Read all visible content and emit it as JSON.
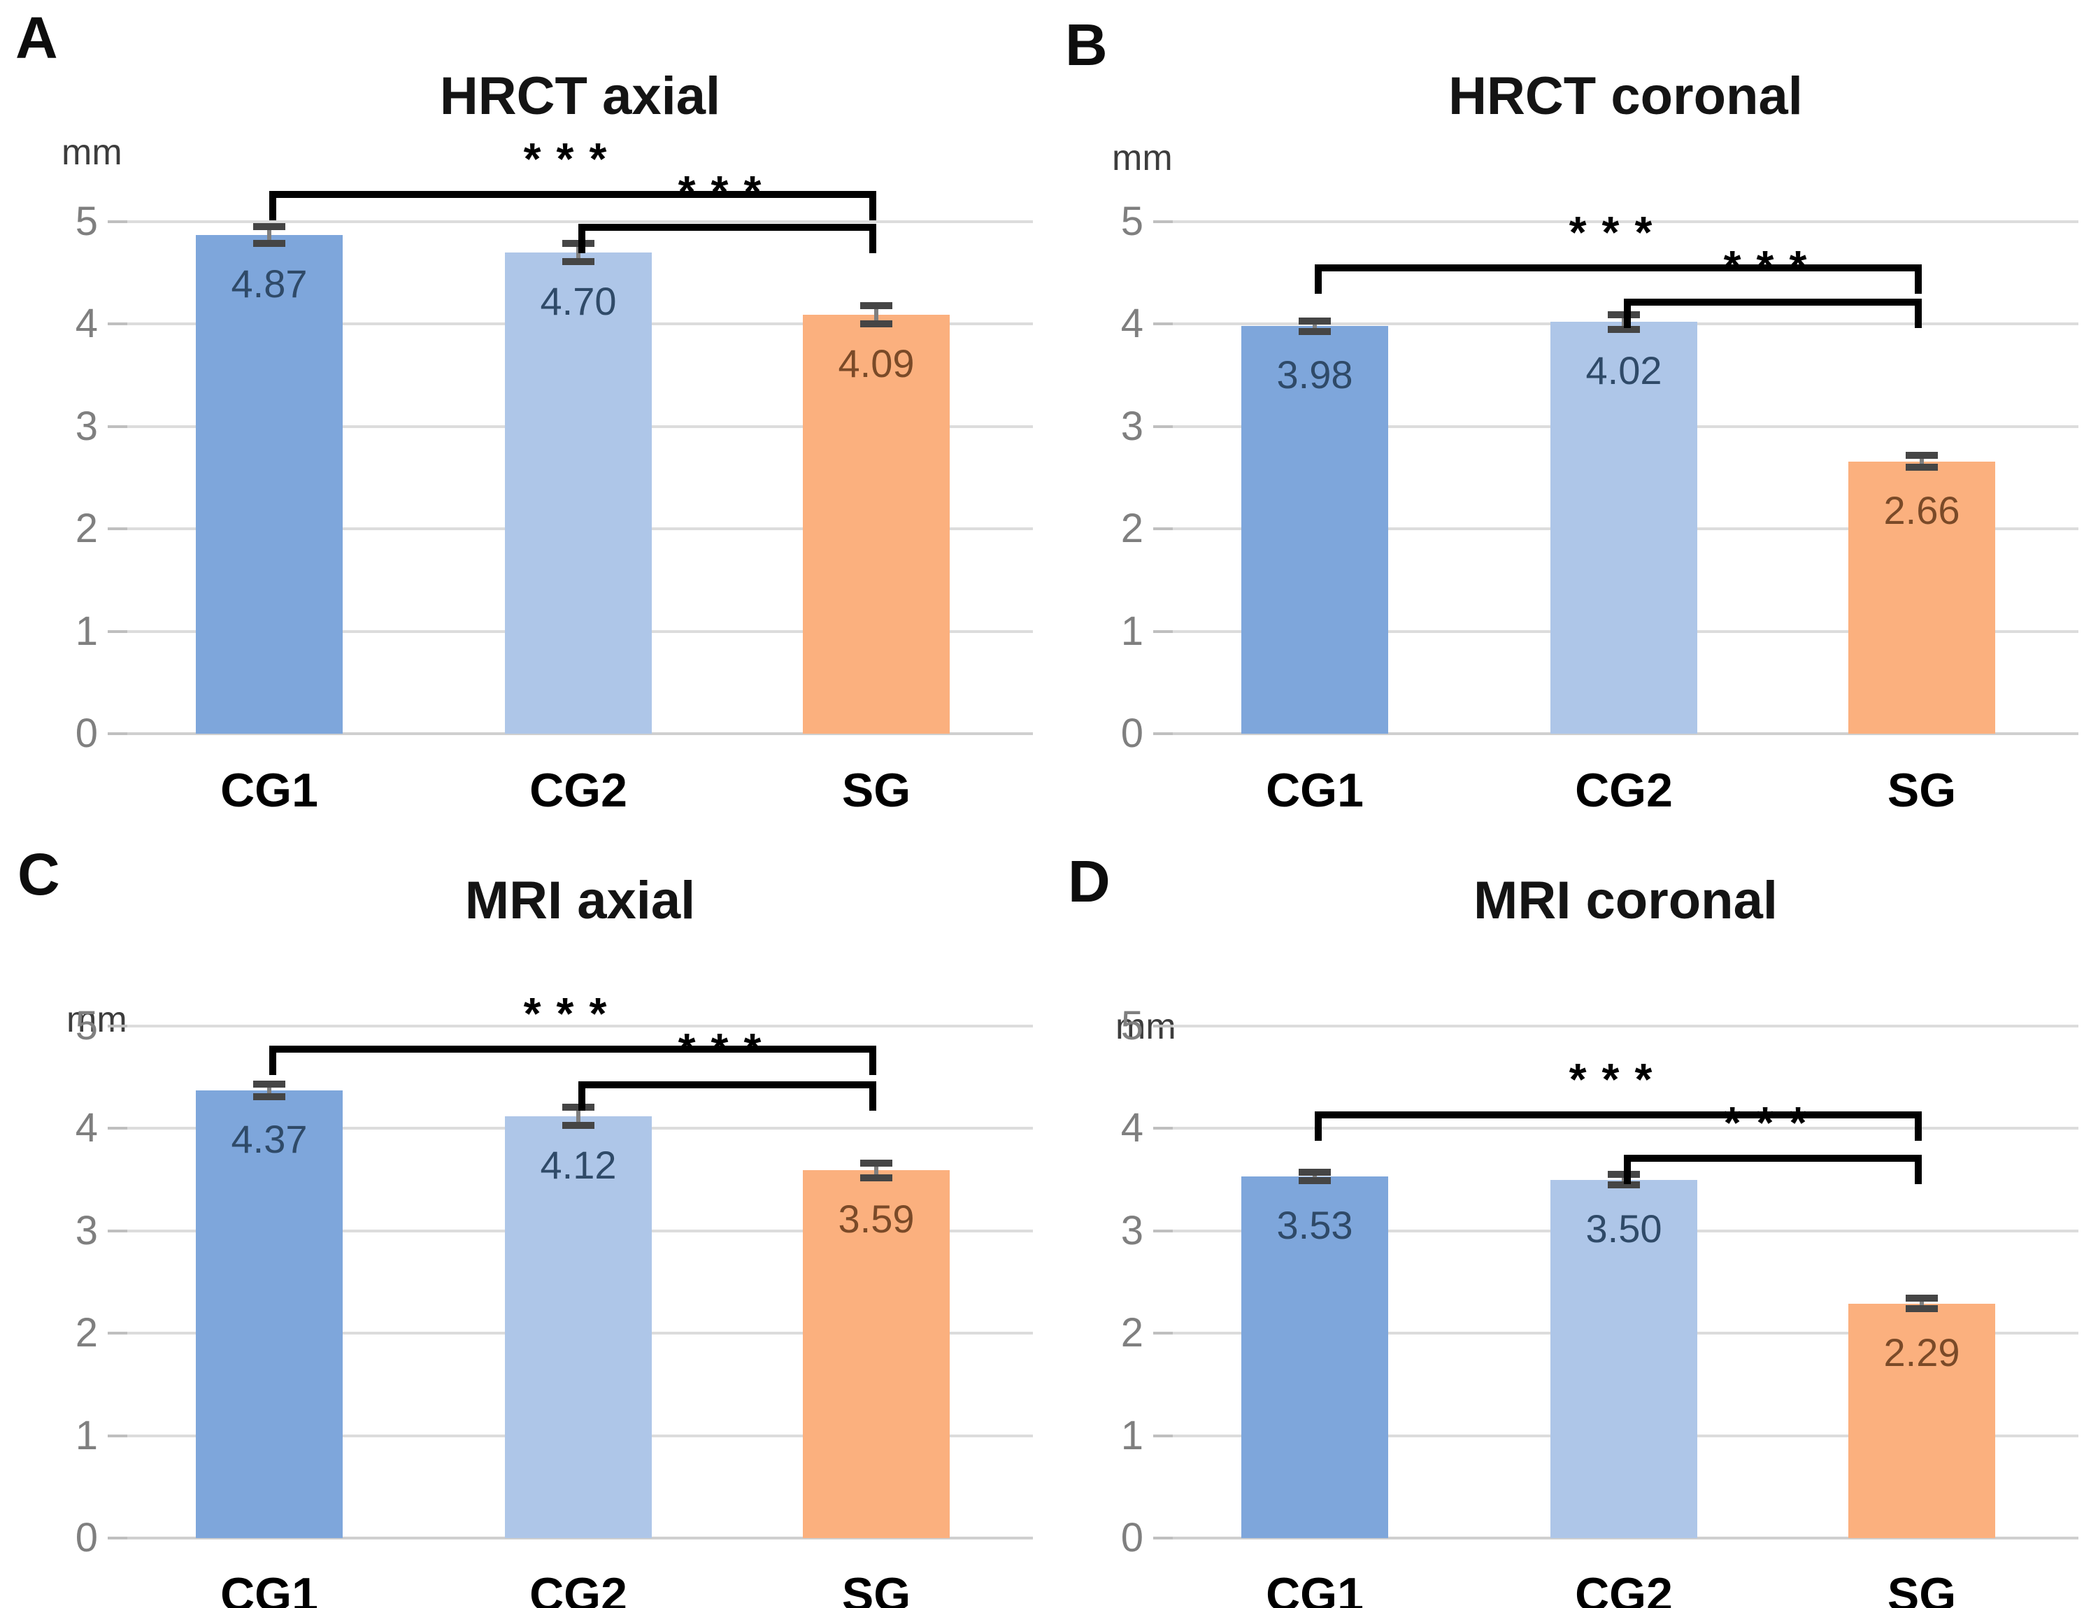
{
  "figure": {
    "background": "#ffffff",
    "grid_color": "#dcdcdc",
    "error_bar_color": "#454545",
    "bracket_color": "#000000"
  },
  "chart_data": [
    {
      "type": "bar",
      "panel_label": "A",
      "title": "HRCT axial",
      "y_axis_unit": "mm",
      "categories": [
        "CG1",
        "CG2",
        "SG"
      ],
      "values": [
        4.87,
        4.7,
        4.09
      ],
      "value_labels": [
        "4.87",
        "4.70",
        "4.09"
      ],
      "errors": [
        0.08,
        0.09,
        0.09
      ],
      "ylim": [
        0,
        5
      ],
      "y_ticks": [
        0,
        1,
        2,
        3,
        4,
        5
      ],
      "grid": true,
      "bar_colors": [
        "#7ea6db",
        "#aec6e8",
        "#fbb07e"
      ],
      "value_label_colors": [
        "#2f4a68",
        "#2f4a68",
        "#7a4a28"
      ],
      "significance": [
        {
          "groups": [
            "CG1",
            "SG"
          ],
          "label": "***",
          "bar_y": 5.3
        },
        {
          "groups": [
            "CG2",
            "SG"
          ],
          "label": "***",
          "bar_y": 4.98
        }
      ]
    },
    {
      "type": "bar",
      "panel_label": "B",
      "title": "HRCT coronal",
      "y_axis_unit": "mm",
      "categories": [
        "CG1",
        "CG2",
        "SG"
      ],
      "values": [
        3.98,
        4.02,
        2.66
      ],
      "value_labels": [
        "3.98",
        "4.02",
        "2.66"
      ],
      "errors": [
        0.05,
        0.07,
        0.06
      ],
      "ylim": [
        0,
        5
      ],
      "y_ticks": [
        0,
        1,
        2,
        3,
        4,
        5
      ],
      "grid": true,
      "bar_colors": [
        "#7ea6db",
        "#aec6e8",
        "#fbb07e"
      ],
      "value_label_colors": [
        "#2f4a68",
        "#2f4a68",
        "#7a4a28"
      ],
      "significance": [
        {
          "groups": [
            "CG1",
            "SG"
          ],
          "label": "***",
          "bar_y": 4.58
        },
        {
          "groups": [
            "CG2",
            "SG"
          ],
          "label": "***",
          "bar_y": 4.25
        }
      ]
    },
    {
      "type": "bar",
      "panel_label": "C",
      "title": "MRI axial",
      "y_axis_unit": "mm",
      "categories": [
        "CG1",
        "CG2",
        "SG"
      ],
      "values": [
        4.37,
        4.12,
        3.59
      ],
      "value_labels": [
        "4.37",
        "4.12",
        "3.59"
      ],
      "errors": [
        0.06,
        0.09,
        0.07
      ],
      "ylim": [
        0,
        5
      ],
      "y_ticks": [
        0,
        1,
        2,
        3,
        4,
        5
      ],
      "grid": true,
      "bar_colors": [
        "#7ea6db",
        "#aec6e8",
        "#fbb07e"
      ],
      "value_label_colors": [
        "#2f4a68",
        "#2f4a68",
        "#7a4a28"
      ],
      "significance": [
        {
          "groups": [
            "CG1",
            "SG"
          ],
          "label": "***",
          "bar_y": 4.81
        },
        {
          "groups": [
            "CG2",
            "SG"
          ],
          "label": "***",
          "bar_y": 4.46
        }
      ]
    },
    {
      "type": "bar",
      "panel_label": "D",
      "title": "MRI coronal",
      "y_axis_unit": "mm",
      "categories": [
        "CG1",
        "CG2",
        "SG"
      ],
      "values": [
        3.53,
        3.5,
        2.29
      ],
      "value_labels": [
        "3.53",
        "3.50",
        "2.29"
      ],
      "errors": [
        0.04,
        0.05,
        0.05
      ],
      "ylim": [
        0,
        5
      ],
      "y_ticks": [
        0,
        1,
        2,
        3,
        4,
        5
      ],
      "grid": true,
      "bar_colors": [
        "#7ea6db",
        "#aec6e8",
        "#fbb07e"
      ],
      "value_label_colors": [
        "#2f4a68",
        "#2f4a68",
        "#7a4a28"
      ],
      "significance": [
        {
          "groups": [
            "CG1",
            "SG"
          ],
          "label": "***",
          "bar_y": 4.17
        },
        {
          "groups": [
            "CG2",
            "SG"
          ],
          "label": "***",
          "bar_y": 3.74
        }
      ]
    }
  ]
}
